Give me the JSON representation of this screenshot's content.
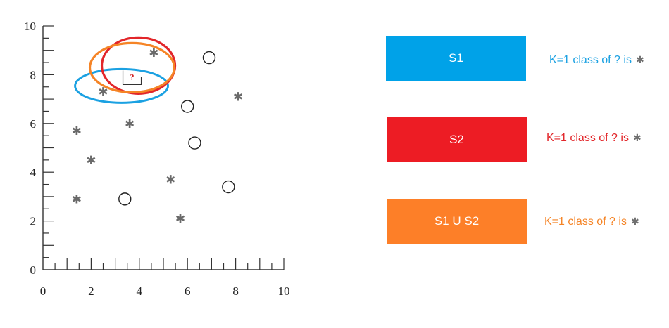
{
  "chart_data": {
    "type": "scatter",
    "xlim": [
      0,
      10
    ],
    "ylim": [
      0,
      10
    ],
    "x_ticks": [
      "0",
      "2",
      "4",
      "6",
      "8",
      "10"
    ],
    "y_ticks": [
      "0",
      "2",
      "4",
      "6",
      "8",
      "10"
    ],
    "series": [
      {
        "marker": "star",
        "color": "#6a6a6a",
        "points": [
          [
            1.4,
            5.7
          ],
          [
            2.0,
            4.5
          ],
          [
            1.4,
            2.9
          ],
          [
            2.5,
            7.3
          ],
          [
            3.6,
            6.0
          ],
          [
            4.6,
            8.9
          ],
          [
            5.3,
            3.7
          ],
          [
            5.7,
            2.1
          ],
          [
            8.1,
            7.1
          ]
        ]
      },
      {
        "marker": "circle",
        "color": "#222222",
        "points": [
          [
            6.9,
            8.7
          ],
          [
            6.0,
            6.7
          ],
          [
            6.3,
            5.2
          ],
          [
            3.4,
            2.9
          ],
          [
            7.7,
            3.4
          ]
        ]
      }
    ],
    "query": {
      "label": "?",
      "x": 3.7,
      "y": 7.8
    },
    "neighborhoods": [
      {
        "set": "S1",
        "color": "#1ba1e2"
      },
      {
        "set": "S2",
        "color": "#e2262a"
      },
      {
        "set": "S1 U S2",
        "color": "#f58426"
      }
    ]
  },
  "legend": [
    {
      "label": "S1",
      "color": "#00a2e8",
      "note": "K=1 class of ? is",
      "note_color": "#1ba1e2",
      "symbol": "✱"
    },
    {
      "label": "S2",
      "color": "#ed1c24",
      "note": "K=1 class of ? is",
      "note_color": "#e2262a",
      "symbol": "✱"
    },
    {
      "label": "S1 U S2",
      "color": "#fd7f28",
      "note": "K=1 class of ? is",
      "note_color": "#f58426",
      "symbol": "✱"
    }
  ]
}
